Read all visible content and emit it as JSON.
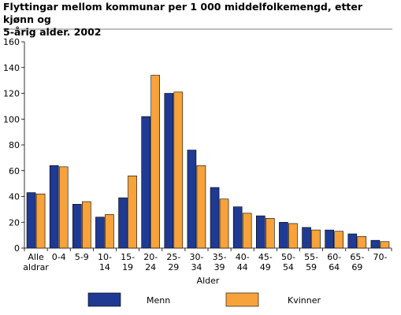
{
  "chart_data": {
    "type": "bar",
    "title_line1": "Flyttingar mellom kommunar per 1 000 middelfolkemengd, etter kjønn og",
    "title_line2": "5-årig alder. 2002",
    "xlabel": "Alder",
    "ylabel": "",
    "ylim": [
      0,
      160
    ],
    "yticks": [
      0,
      20,
      40,
      60,
      80,
      100,
      120,
      140,
      160
    ],
    "grid": false,
    "legend_position": "bottom",
    "categories": [
      [
        "Alle",
        "aldrar"
      ],
      [
        "0-4"
      ],
      [
        "5-9"
      ],
      [
        "10-",
        "14"
      ],
      [
        "15-",
        "19"
      ],
      [
        "20-",
        "24"
      ],
      [
        "25-",
        "29"
      ],
      [
        "30-",
        "34"
      ],
      [
        "35-",
        "39"
      ],
      [
        "40-",
        "44"
      ],
      [
        "45-",
        "49"
      ],
      [
        "50-",
        "54"
      ],
      [
        "55-",
        "59"
      ],
      [
        "60-",
        "64"
      ],
      [
        "65-",
        "69"
      ],
      [
        "70-"
      ]
    ],
    "series": [
      {
        "name": "Menn",
        "color": "#1f3a93",
        "values": [
          43,
          64,
          34,
          24,
          39,
          102,
          120,
          76,
          47,
          32,
          25,
          20,
          16,
          14,
          11,
          6
        ]
      },
      {
        "name": "Kvinner",
        "color": "#f7a23a",
        "values": [
          42,
          63,
          36,
          26,
          56,
          134,
          121,
          64,
          38,
          27,
          23,
          19,
          14,
          13,
          9,
          5
        ]
      }
    ]
  }
}
